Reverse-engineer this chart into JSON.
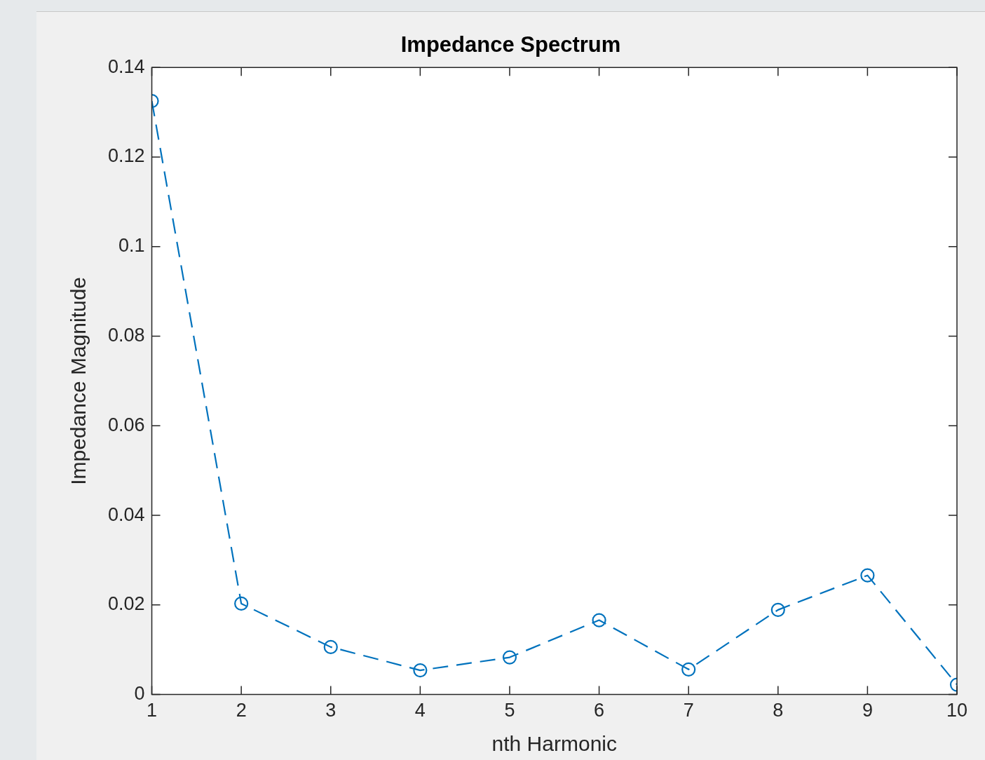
{
  "chart_data": {
    "type": "line",
    "title": "Impedance Spectrum",
    "xlabel": "nth Harmonic",
    "ylabel": "Impedance Magnitude",
    "x": [
      1,
      2,
      3,
      4,
      5,
      6,
      7,
      8,
      9,
      10
    ],
    "series": [
      {
        "color": "#0072bd",
        "values": [
          0.1325,
          0.0203,
          0.0106,
          0.0054,
          0.0083,
          0.0166,
          0.0056,
          0.0189,
          0.0266,
          0.0022
        ]
      }
    ],
    "xlim": [
      1,
      10
    ],
    "xticks": [
      1,
      2,
      3,
      4,
      5,
      6,
      7,
      8,
      9,
      10
    ],
    "ylim": [
      0,
      0.14
    ],
    "yticks": [
      0,
      0.02,
      0.04,
      0.06,
      0.08,
      0.1,
      0.12,
      0.14
    ],
    "legend": false,
    "marker": "circle",
    "line_style": "dashed"
  }
}
